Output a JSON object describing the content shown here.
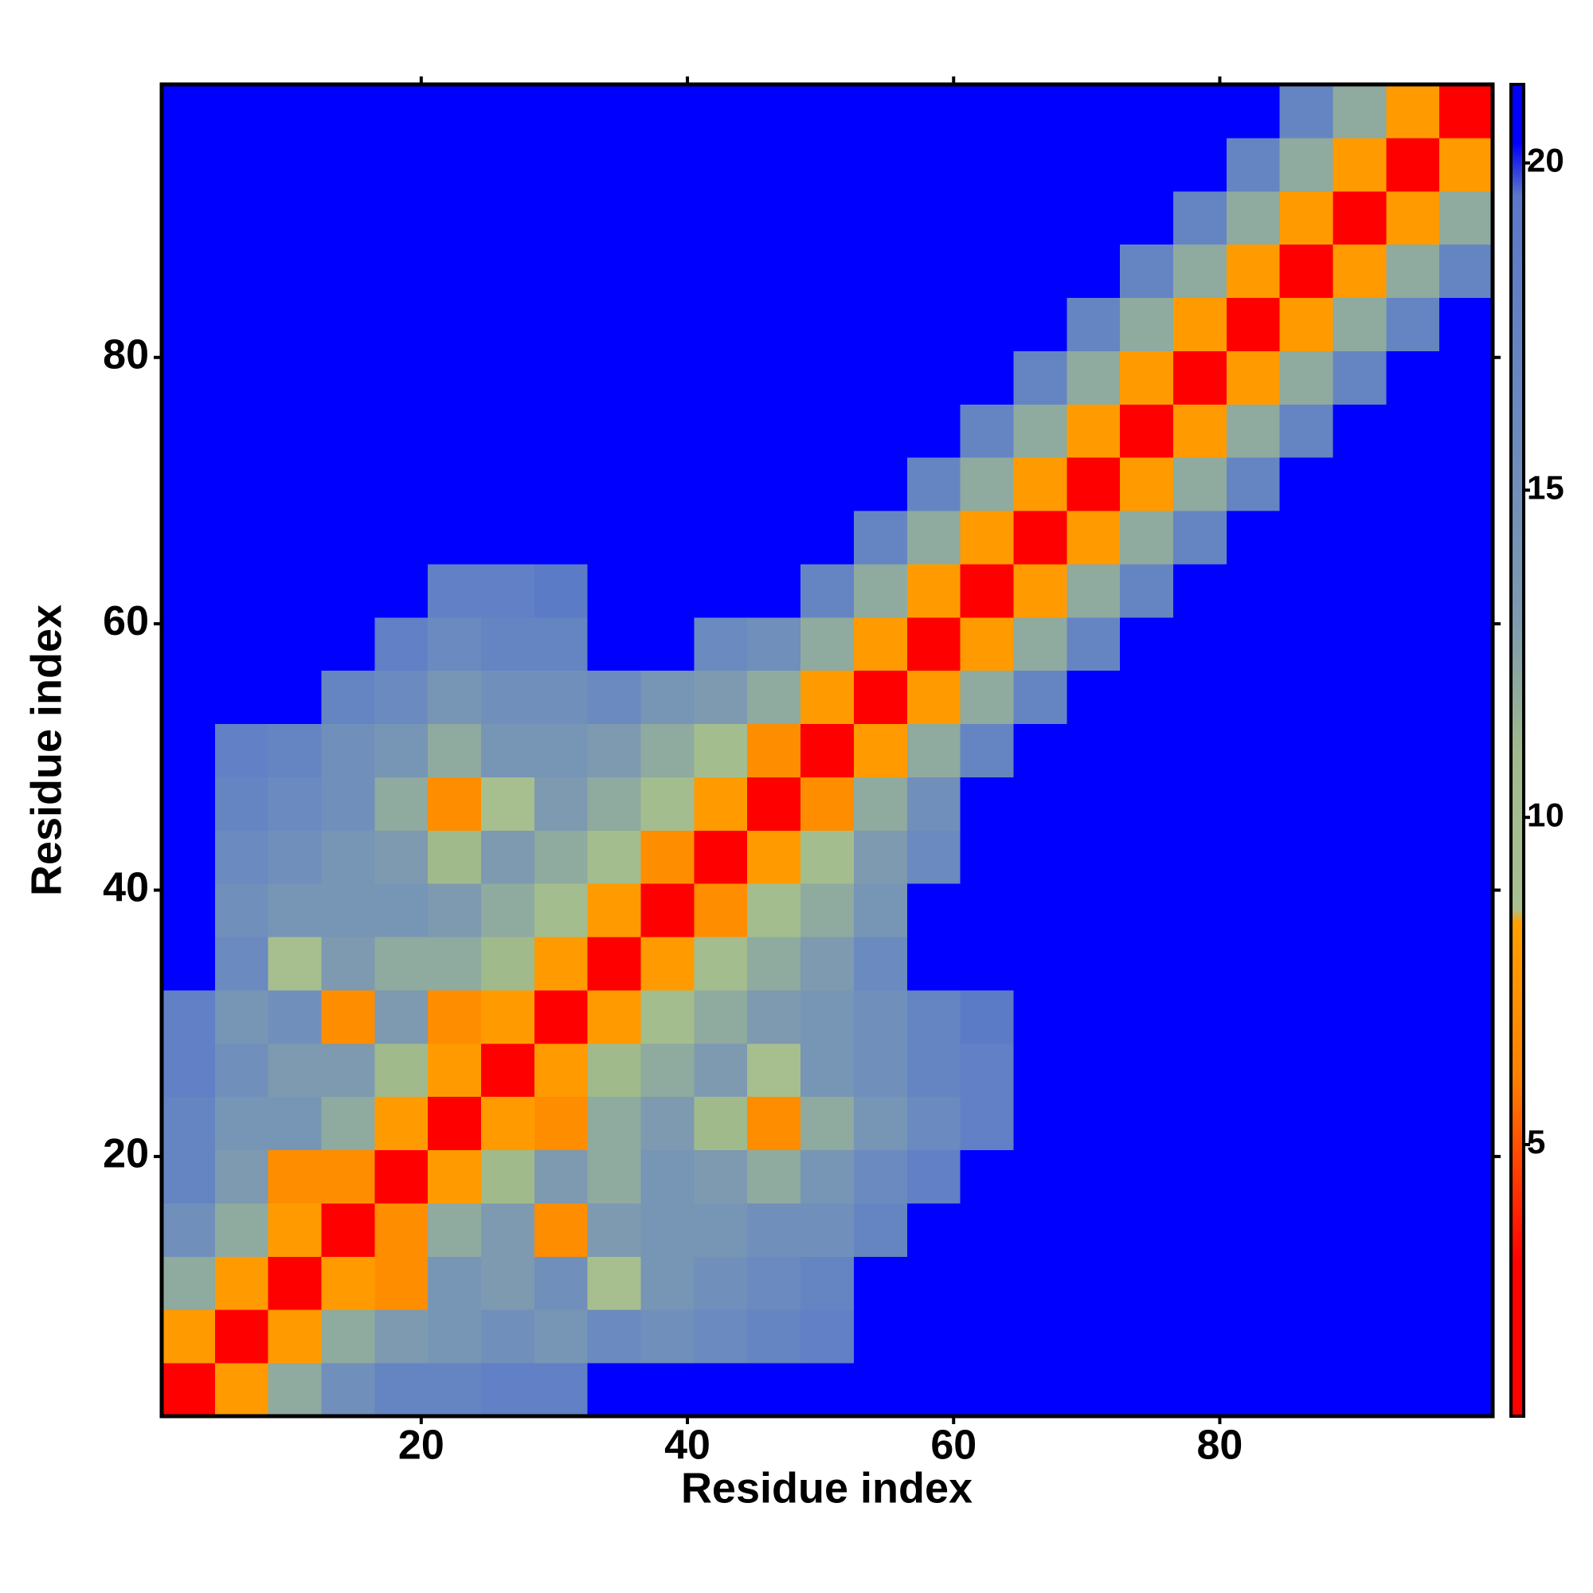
{
  "chart_data": {
    "type": "heatmap",
    "xlabel": "Residue index",
    "ylabel": "Residue index",
    "x": [
      2.5,
      6.5,
      10.5,
      14.5,
      18.5,
      22.5,
      26.5,
      30.5,
      34.5,
      38.5,
      42.5,
      46.5,
      50.5,
      54.5,
      58.5,
      62.5,
      66.5,
      70.5,
      74.5,
      78.5,
      82.5,
      86.5,
      90.5,
      94.5,
      98.5
    ],
    "y": [
      2.5,
      6.5,
      10.5,
      14.5,
      18.5,
      22.5,
      26.5,
      30.5,
      34.5,
      38.5,
      42.5,
      46.5,
      50.5,
      54.5,
      58.5,
      62.5,
      66.5,
      70.5,
      74.5,
      78.5,
      82.5,
      86.5,
      90.5,
      94.5,
      98.5
    ],
    "z": [
      [
        2,
        8,
        12,
        15,
        17,
        17,
        18,
        18,
        21,
        21,
        21,
        21,
        21,
        21,
        21,
        21,
        21,
        21,
        21,
        21,
        21,
        21,
        21,
        21,
        21
      ],
      [
        8,
        2,
        8,
        12,
        13,
        14,
        15,
        14,
        16,
        15,
        16,
        17,
        18,
        21,
        21,
        21,
        21,
        21,
        21,
        21,
        21,
        21,
        21,
        21,
        21
      ],
      [
        12,
        8,
        2,
        8,
        7,
        14,
        13,
        15,
        9,
        14,
        15,
        16,
        17,
        21,
        21,
        21,
        21,
        21,
        21,
        21,
        21,
        21,
        21,
        21,
        21
      ],
      [
        15,
        12,
        8,
        2,
        7,
        12,
        13,
        7,
        13,
        14,
        14,
        15,
        15,
        17,
        21,
        21,
        21,
        21,
        21,
        21,
        21,
        21,
        21,
        21,
        21
      ],
      [
        17,
        13,
        7,
        7,
        2,
        8,
        11,
        13,
        12,
        14,
        13,
        12,
        14,
        16,
        18,
        21,
        21,
        21,
        21,
        21,
        21,
        21,
        21,
        21,
        21
      ],
      [
        17,
        14,
        14,
        12,
        8,
        2,
        8,
        7,
        12,
        13,
        11,
        7,
        12,
        14,
        16,
        18,
        21,
        21,
        21,
        21,
        21,
        21,
        21,
        21,
        21
      ],
      [
        18,
        15,
        13,
        13,
        11,
        8,
        2,
        8,
        11,
        12,
        13,
        9,
        14,
        15,
        17,
        18,
        21,
        21,
        21,
        21,
        21,
        21,
        21,
        21,
        21
      ],
      [
        18,
        14,
        15,
        7,
        13,
        7,
        8,
        2,
        8,
        10,
        12,
        13,
        14,
        15,
        17,
        19,
        21,
        21,
        21,
        21,
        21,
        21,
        21,
        21,
        21
      ],
      [
        21,
        16,
        9,
        13,
        12,
        12,
        11,
        8,
        2,
        8,
        10,
        12,
        13,
        16,
        21,
        21,
        21,
        21,
        21,
        21,
        21,
        21,
        21,
        21,
        21
      ],
      [
        21,
        15,
        14,
        14,
        14,
        13,
        12,
        10,
        8,
        2,
        7,
        10,
        12,
        14,
        21,
        21,
        21,
        21,
        21,
        21,
        21,
        21,
        21,
        21,
        21
      ],
      [
        21,
        16,
        15,
        14,
        13,
        11,
        13,
        12,
        10,
        7,
        2,
        8,
        10,
        13,
        16,
        21,
        21,
        21,
        21,
        21,
        21,
        21,
        21,
        21,
        21
      ],
      [
        21,
        17,
        16,
        15,
        12,
        7,
        9,
        13,
        12,
        10,
        8,
        2,
        7,
        12,
        15,
        21,
        21,
        21,
        21,
        21,
        21,
        21,
        21,
        21,
        21
      ],
      [
        21,
        18,
        17,
        15,
        14,
        12,
        14,
        14,
        13,
        12,
        10,
        7,
        2,
        8,
        12,
        17,
        21,
        21,
        21,
        21,
        21,
        21,
        21,
        21,
        21
      ],
      [
        21,
        21,
        21,
        17,
        16,
        14,
        15,
        15,
        16,
        14,
        13,
        12,
        8,
        2,
        8,
        12,
        17,
        21,
        21,
        21,
        21,
        21,
        21,
        21,
        21
      ],
      [
        21,
        21,
        21,
        21,
        18,
        16,
        17,
        17,
        21,
        21,
        16,
        15,
        12,
        8,
        2,
        8,
        12,
        17,
        21,
        21,
        21,
        21,
        21,
        21,
        21
      ],
      [
        21,
        21,
        21,
        21,
        21,
        18,
        18,
        19,
        21,
        21,
        21,
        21,
        17,
        12,
        8,
        2,
        8,
        12,
        17,
        21,
        21,
        21,
        21,
        21,
        21
      ],
      [
        21,
        21,
        21,
        21,
        21,
        21,
        21,
        21,
        21,
        21,
        21,
        21,
        21,
        17,
        12,
        8,
        2,
        8,
        12,
        17,
        21,
        21,
        21,
        21,
        21
      ],
      [
        21,
        21,
        21,
        21,
        21,
        21,
        21,
        21,
        21,
        21,
        21,
        21,
        21,
        21,
        17,
        12,
        8,
        2,
        8,
        12,
        17,
        21,
        21,
        21,
        21
      ],
      [
        21,
        21,
        21,
        21,
        21,
        21,
        21,
        21,
        21,
        21,
        21,
        21,
        21,
        21,
        21,
        17,
        12,
        8,
        2,
        8,
        12,
        17,
        21,
        21,
        21
      ],
      [
        21,
        21,
        21,
        21,
        21,
        21,
        21,
        21,
        21,
        21,
        21,
        21,
        21,
        21,
        21,
        21,
        17,
        12,
        8,
        2,
        8,
        12,
        17,
        21,
        21
      ],
      [
        21,
        21,
        21,
        21,
        21,
        21,
        21,
        21,
        21,
        21,
        21,
        21,
        21,
        21,
        21,
        21,
        21,
        17,
        12,
        8,
        2,
        8,
        12,
        17,
        21
      ],
      [
        21,
        21,
        21,
        21,
        21,
        21,
        21,
        21,
        21,
        21,
        21,
        21,
        21,
        21,
        21,
        21,
        21,
        21,
        17,
        12,
        8,
        2,
        8,
        12,
        17
      ],
      [
        21,
        21,
        21,
        21,
        21,
        21,
        21,
        21,
        21,
        21,
        21,
        21,
        21,
        21,
        21,
        21,
        21,
        21,
        21,
        17,
        12,
        8,
        2,
        8,
        12
      ],
      [
        21,
        21,
        21,
        21,
        21,
        21,
        21,
        21,
        21,
        21,
        21,
        21,
        21,
        21,
        21,
        21,
        21,
        21,
        21,
        21,
        17,
        12,
        8,
        2,
        8
      ],
      [
        21,
        21,
        21,
        21,
        21,
        21,
        21,
        21,
        21,
        21,
        21,
        21,
        21,
        21,
        21,
        21,
        21,
        21,
        21,
        21,
        21,
        17,
        12,
        8,
        2
      ]
    ],
    "xlim": [
      0.5,
      100.5
    ],
    "ylim": [
      0.5,
      100.5
    ],
    "xticks": [
      20,
      40,
      60,
      80
    ],
    "yticks": [
      20,
      40,
      60,
      80
    ],
    "zlim": [
      0.85,
      21.2
    ],
    "zticks": [
      5,
      10,
      15,
      20
    ],
    "colorscale": [
      [
        0.85,
        "#ff0000"
      ],
      [
        3.2,
        "#ff0000"
      ],
      [
        5,
        "#ff5000"
      ],
      [
        6,
        "#ff8000"
      ],
      [
        8.4,
        "#ffa000"
      ],
      [
        8.6,
        "#a8c090"
      ],
      [
        11,
        "#a0ba8c"
      ],
      [
        13,
        "#7d9ab0"
      ],
      [
        16,
        "#6a8ac0"
      ],
      [
        19.5,
        "#5a78c8"
      ],
      [
        20.3,
        "#0000ff"
      ],
      [
        21.2,
        "#0000ff"
      ]
    ]
  }
}
